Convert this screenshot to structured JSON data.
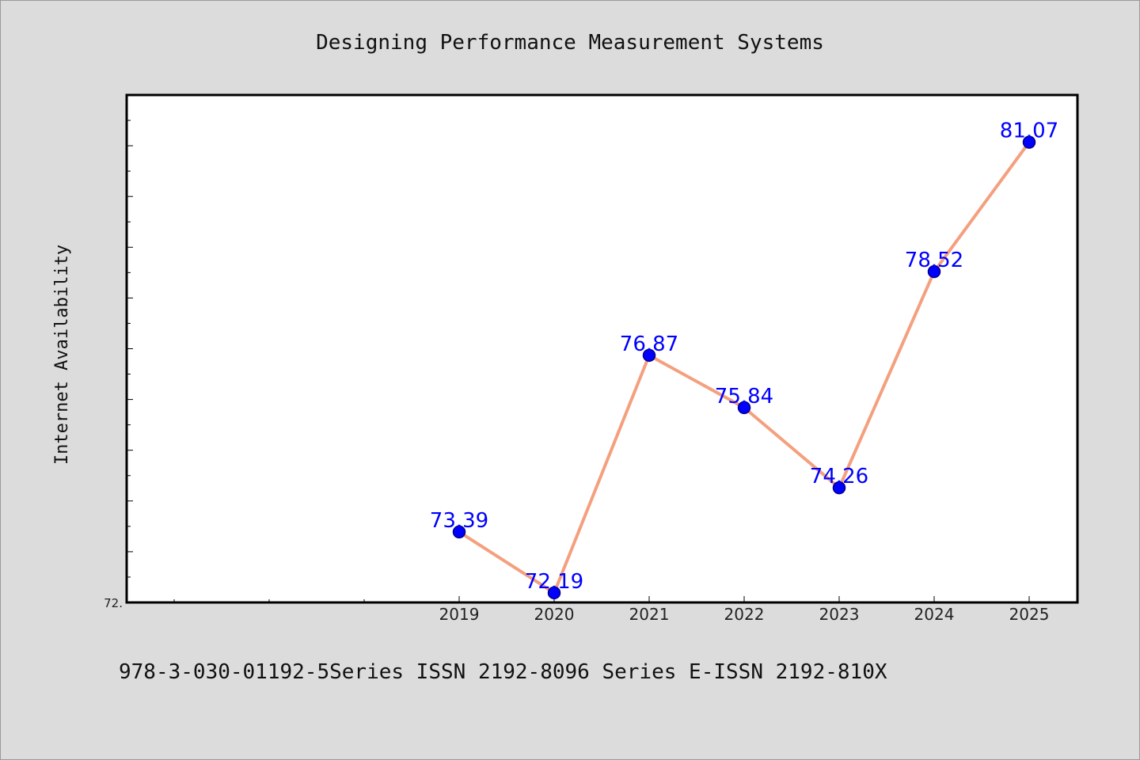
{
  "chart_data": {
    "type": "line",
    "title": "Designing Performance Measurement Systems",
    "xlabel": "",
    "ylabel": "Internet Availability",
    "categories": [
      "2019",
      "2020",
      "2021",
      "2022",
      "2023",
      "2024",
      "2025"
    ],
    "series": [
      {
        "values": [
          73.39,
          72.19,
          76.87,
          75.84,
          74.26,
          78.52,
          81.07
        ],
        "labels": [
          "73.39",
          "72.19",
          "76.87",
          "75.84",
          "74.26",
          "78.52",
          "81.07"
        ]
      }
    ],
    "ylim": [
      72.0,
      82.0
    ],
    "y_tick_label": "72.",
    "x_minor_categories_before": 3,
    "grid": false,
    "legend": "none"
  },
  "footer": "978-3-030-01192-5Series ISSN 2192-8096 Series E-ISSN 2192-810X",
  "colors": {
    "line": "#f4a07e",
    "marker": "#0000ff",
    "marker_edge": "#00008b",
    "label": "#0000ff",
    "plot_bg": "#ffffff",
    "page_bg": "#dcdcdc",
    "axis": "#000000"
  }
}
